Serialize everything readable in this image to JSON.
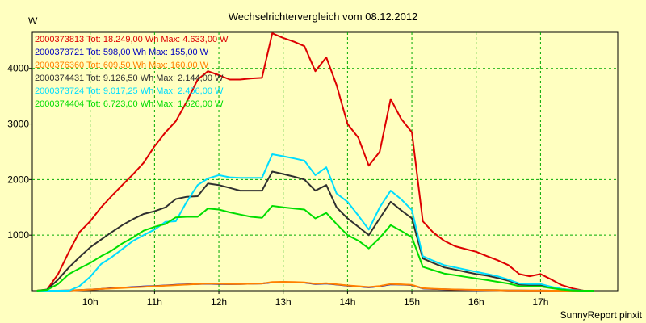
{
  "chart_data": {
    "type": "line",
    "title": "Wechselrichtervergleich vom 08.12.2012",
    "ylabel": "W",
    "footer": "SunnyReport pinxit",
    "xlim": [
      9.1,
      18.2
    ],
    "ylim": [
      0,
      4650
    ],
    "grid": true,
    "legend_placement": "top-left",
    "x_ticks": [
      {
        "value": 10,
        "label": "10h"
      },
      {
        "value": 11,
        "label": "11h"
      },
      {
        "value": 12,
        "label": "12h"
      },
      {
        "value": 13,
        "label": "13h"
      },
      {
        "value": 14,
        "label": "14h"
      },
      {
        "value": 15,
        "label": "15h"
      },
      {
        "value": 16,
        "label": "16h"
      },
      {
        "value": 17,
        "label": "17h"
      }
    ],
    "y_ticks": [
      {
        "value": 1000,
        "label": "1000"
      },
      {
        "value": 2000,
        "label": "2000"
      },
      {
        "value": 3000,
        "label": "3000"
      },
      {
        "value": 4000,
        "label": "4000"
      }
    ],
    "x": [
      9.17,
      9.33,
      9.5,
      9.67,
      9.83,
      10.0,
      10.17,
      10.33,
      10.5,
      10.67,
      10.83,
      11.0,
      11.17,
      11.33,
      11.5,
      11.67,
      11.83,
      12.0,
      12.17,
      12.33,
      12.5,
      12.67,
      12.83,
      13.0,
      13.17,
      13.33,
      13.5,
      13.67,
      13.83,
      14.0,
      14.17,
      14.33,
      14.5,
      14.67,
      14.83,
      15.0,
      15.17,
      15.33,
      15.5,
      15.67,
      15.83,
      16.0,
      16.17,
      16.33,
      16.5,
      16.67,
      16.83,
      17.0,
      17.17,
      17.33,
      17.5,
      17.67,
      17.83
    ],
    "series": [
      {
        "name": "2000373813 Tot: 18.249,00 Wh Max: 4.633,00 W",
        "color": "#dd0000",
        "values": [
          0,
          20,
          300,
          700,
          1050,
          1250,
          1500,
          1700,
          1900,
          2100,
          2300,
          2600,
          2850,
          3050,
          3400,
          3800,
          3950,
          3880,
          3800,
          3800,
          3820,
          3830,
          4633,
          4550,
          4480,
          4400,
          3950,
          4200,
          3700,
          3000,
          2750,
          2250,
          2500,
          3450,
          3100,
          2850,
          1250,
          1050,
          900,
          800,
          750,
          700,
          620,
          550,
          460,
          300,
          260,
          300,
          200,
          100,
          40,
          0,
          0
        ]
      },
      {
        "name": "2000373721 Tot: 598,00 Wh Max: 155,00 W",
        "color": "#0000c0",
        "values": [
          0,
          0,
          0,
          5,
          10,
          20,
          30,
          45,
          55,
          65,
          75,
          85,
          95,
          105,
          115,
          120,
          125,
          120,
          118,
          120,
          125,
          130,
          150,
          155,
          150,
          145,
          120,
          130,
          110,
          90,
          75,
          60,
          80,
          115,
          110,
          100,
          40,
          30,
          25,
          20,
          15,
          12,
          10,
          8,
          5,
          3,
          2,
          2,
          0,
          0,
          0,
          0,
          0
        ]
      },
      {
        "name": "2000376360 Tot: 609,50 Wh Max: 160,00 W",
        "color": "#ff8000",
        "values": [
          0,
          0,
          0,
          5,
          10,
          20,
          30,
          40,
          50,
          60,
          70,
          80,
          90,
          100,
          110,
          120,
          130,
          125,
          120,
          120,
          125,
          130,
          155,
          160,
          155,
          150,
          125,
          135,
          115,
          95,
          80,
          65,
          85,
          120,
          115,
          105,
          45,
          35,
          28,
          22,
          18,
          14,
          10,
          8,
          5,
          3,
          2,
          2,
          0,
          0,
          0,
          0,
          0
        ]
      },
      {
        "name": "2000374431 Tot: 9.126,50 Wh Max: 2.144,00 W",
        "color": "#303030",
        "values": [
          0,
          20,
          200,
          420,
          600,
          780,
          920,
          1050,
          1180,
          1290,
          1380,
          1430,
          1500,
          1650,
          1690,
          1700,
          1930,
          1900,
          1850,
          1800,
          1800,
          1800,
          2144,
          2100,
          2050,
          2000,
          1800,
          1900,
          1500,
          1300,
          1150,
          1000,
          1300,
          1600,
          1450,
          1300,
          580,
          500,
          420,
          380,
          340,
          300,
          270,
          230,
          180,
          110,
          100,
          100,
          60,
          30,
          10,
          0,
          0
        ]
      },
      {
        "name": "2000373724 Tot: 9.017,25 Wh Max: 2.456,00 W",
        "color": "#00ddff",
        "values": [
          0,
          0,
          0,
          0,
          80,
          250,
          480,
          600,
          750,
          900,
          1000,
          1100,
          1240,
          1250,
          1600,
          1900,
          2020,
          2080,
          2040,
          2030,
          2030,
          2030,
          2456,
          2420,
          2380,
          2340,
          2080,
          2220,
          1750,
          1600,
          1350,
          1100,
          1500,
          1800,
          1650,
          1450,
          620,
          540,
          460,
          420,
          380,
          340,
          300,
          260,
          200,
          130,
          120,
          120,
          70,
          30,
          10,
          0,
          0
        ]
      },
      {
        "name": "2000374404 Tot: 6.723,00 Wh Max: 1.526,00 W",
        "color": "#00dd00",
        "values": [
          0,
          15,
          120,
          300,
          400,
          500,
          620,
          720,
          850,
          960,
          1080,
          1150,
          1200,
          1320,
          1330,
          1330,
          1480,
          1460,
          1410,
          1370,
          1330,
          1310,
          1526,
          1500,
          1480,
          1460,
          1300,
          1400,
          1200,
          1000,
          900,
          760,
          950,
          1180,
          1080,
          960,
          430,
          370,
          310,
          280,
          250,
          220,
          190,
          160,
          130,
          80,
          75,
          75,
          45,
          20,
          5,
          0,
          0
        ]
      }
    ]
  }
}
